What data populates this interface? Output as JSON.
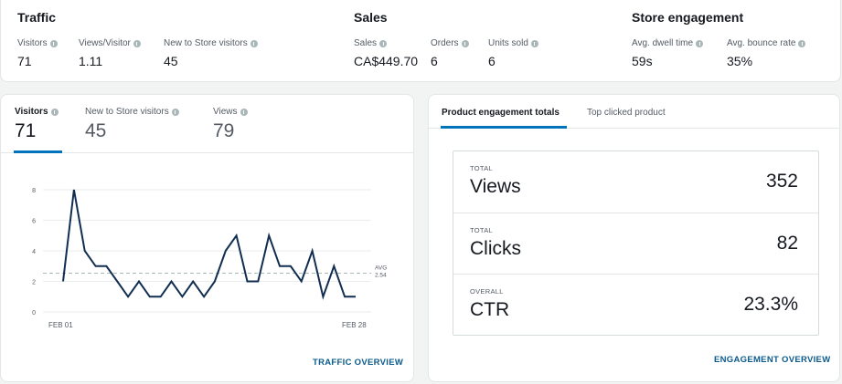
{
  "summary": {
    "traffic": {
      "title": "Traffic",
      "metrics": [
        {
          "label": "Visitors",
          "value": "71"
        },
        {
          "label": "Views/Visitor",
          "value": "1.11"
        },
        {
          "label": "New to Store visitors",
          "value": "45"
        }
      ]
    },
    "sales": {
      "title": "Sales",
      "metrics": [
        {
          "label": "Sales",
          "value": "CA$449.70"
        },
        {
          "label": "Orders",
          "value": "6"
        },
        {
          "label": "Units sold",
          "value": "6"
        }
      ]
    },
    "engagement": {
      "title": "Store engagement",
      "metrics": [
        {
          "label": "Avg. dwell time",
          "value": "59s"
        },
        {
          "label": "Avg. bounce rate",
          "value": "35%"
        }
      ]
    }
  },
  "traffic_card": {
    "tabs": [
      {
        "label": "Visitors",
        "value": "71",
        "active": true
      },
      {
        "label": "New to Store visitors",
        "value": "45",
        "active": false
      },
      {
        "label": "Views",
        "value": "79",
        "active": false
      }
    ],
    "link": "TRAFFIC OVERVIEW"
  },
  "chart_data": {
    "type": "line",
    "x_start_label": "FEB 01",
    "x_end_label": "FEB 28",
    "y_ticks": [
      0,
      2,
      4,
      6,
      8
    ],
    "ylim": [
      0,
      8
    ],
    "values": [
      2,
      8,
      4,
      3,
      3,
      2,
      1,
      2,
      1,
      1,
      2,
      1,
      2,
      1,
      2,
      4,
      5,
      2,
      2,
      5,
      3,
      3,
      2,
      4,
      1,
      3,
      1,
      1
    ],
    "avg_label": "AVG",
    "avg_value": "2.54",
    "avg": 2.54,
    "line_color": "#112e51",
    "grid": true
  },
  "engagement_card": {
    "tabs": [
      {
        "label": "Product engagement totals",
        "active": true
      },
      {
        "label": "Top clicked product",
        "active": false
      }
    ],
    "rows": [
      {
        "caption": "TOTAL",
        "name": "Views",
        "value": "352"
      },
      {
        "caption": "TOTAL",
        "name": "Clicks",
        "value": "82"
      },
      {
        "caption": "OVERALL",
        "name": "CTR",
        "value": "23.3%"
      }
    ],
    "link": "ENGAGEMENT OVERVIEW"
  },
  "colors": {
    "accent": "#0073bb",
    "link": "#0b5b8c",
    "line": "#112e51"
  }
}
